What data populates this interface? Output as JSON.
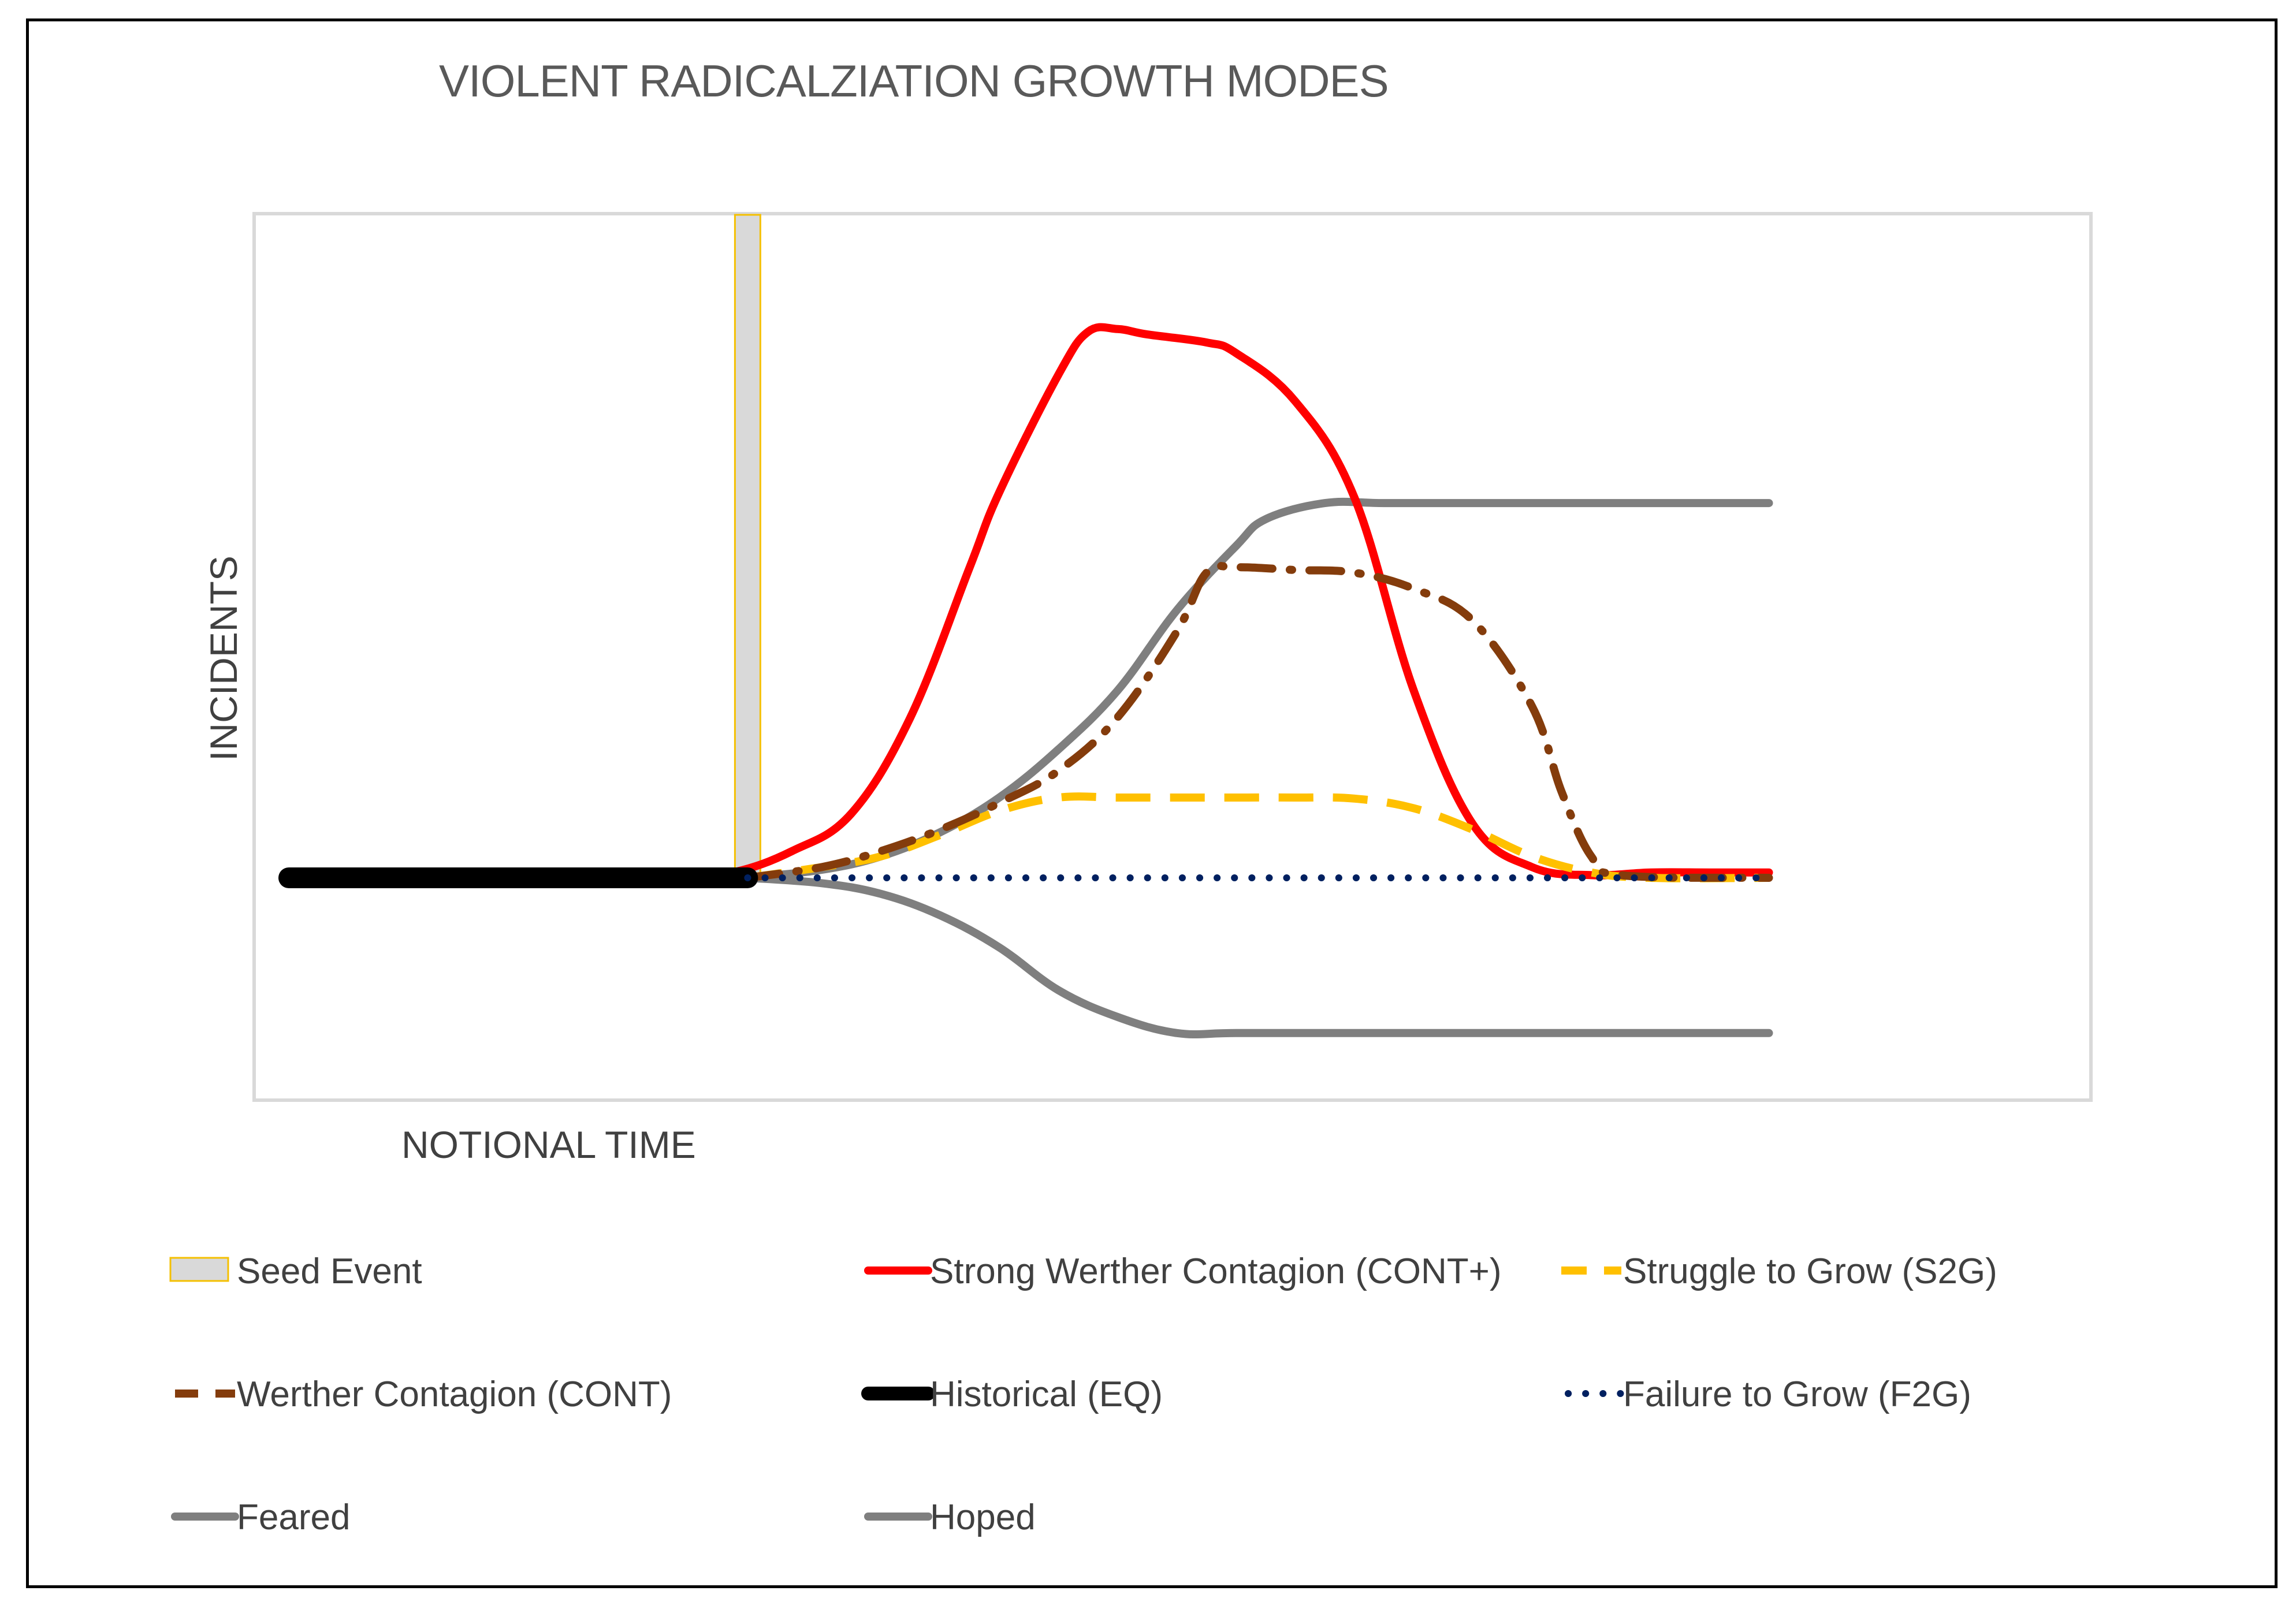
{
  "chart_data": {
    "type": "line",
    "title": "VIOLENT RADICALZIATION GROWTH MODES",
    "xlabel": "NOTIONAL TIME",
    "ylabel": "INCIDENTS",
    "x_axis_ticks": "none",
    "y_axis_ticks": "none",
    "xlim": [
      0,
      60
    ],
    "ylim": [
      -40,
      120
    ],
    "grid": false,
    "legend_position": "bottom",
    "seed_event": {
      "name": "Seed Event",
      "x": 15.5,
      "color": "#d9d9d9",
      "border": "#f5c000"
    },
    "series": [
      {
        "name": "Strong Werther Contagion (CONT+)",
        "key": "cont_plus",
        "color": "#ff0000",
        "style": "solid",
        "points": [
          [
            13,
            0
          ],
          [
            15,
            1
          ],
          [
            17,
            5
          ],
          [
            19,
            12
          ],
          [
            21,
            30
          ],
          [
            23,
            58
          ],
          [
            24,
            72
          ],
          [
            26,
            94
          ],
          [
            27,
            102
          ],
          [
            28,
            102.5
          ],
          [
            29,
            101.5
          ],
          [
            31,
            100
          ],
          [
            32,
            98
          ],
          [
            34,
            89
          ],
          [
            36,
            71
          ],
          [
            38,
            35
          ],
          [
            40,
            10
          ],
          [
            42,
            2
          ],
          [
            44,
            0.5
          ],
          [
            46,
            1
          ],
          [
            48,
            1
          ],
          [
            50,
            1
          ]
        ]
      },
      {
        "name": "Struggle to Grow (S2G)",
        "key": "s2g",
        "color": "#ffc000",
        "style": "dashed",
        "points": [
          [
            15.5,
            0
          ],
          [
            18,
            2
          ],
          [
            20,
            4
          ],
          [
            22,
            8
          ],
          [
            24,
            12.5
          ],
          [
            26,
            15
          ],
          [
            28,
            15
          ],
          [
            30,
            15
          ],
          [
            32,
            15
          ],
          [
            34,
            15
          ],
          [
            36,
            14.8
          ],
          [
            38,
            13
          ],
          [
            40,
            9
          ],
          [
            42,
            4
          ],
          [
            44,
            1
          ],
          [
            46,
            0
          ],
          [
            50,
            0
          ]
        ]
      },
      {
        "name": "Werther Contagion (CONT)",
        "key": "cont",
        "color": "#843c0c",
        "style": "dashdot",
        "points": [
          [
            15.5,
            0
          ],
          [
            18,
            2
          ],
          [
            20,
            5
          ],
          [
            22,
            9
          ],
          [
            24,
            14
          ],
          [
            26,
            20
          ],
          [
            28,
            30
          ],
          [
            30,
            46
          ],
          [
            31,
            57
          ],
          [
            32,
            58
          ],
          [
            34,
            57.5
          ],
          [
            36,
            57
          ],
          [
            38,
            54
          ],
          [
            40,
            48
          ],
          [
            42,
            32
          ],
          [
            43,
            16
          ],
          [
            44,
            4
          ],
          [
            45,
            0.5
          ],
          [
            50,
            0
          ]
        ]
      },
      {
        "name": "Historical (EQ)",
        "key": "eq",
        "color": "#000000",
        "style": "thick",
        "points": [
          [
            0,
            0
          ],
          [
            15.5,
            0
          ]
        ]
      },
      {
        "name": "Failure to Grow (F2G)",
        "key": "f2g",
        "color": "#002060",
        "style": "dotted",
        "points": [
          [
            15.5,
            0
          ],
          [
            50,
            0
          ]
        ]
      },
      {
        "name": "Feared",
        "key": "feared",
        "color": "#7f7f7f",
        "style": "solid",
        "points": [
          [
            15.5,
            0
          ],
          [
            18,
            1.5
          ],
          [
            20,
            4
          ],
          [
            22,
            8.5
          ],
          [
            24,
            15
          ],
          [
            26,
            24
          ],
          [
            28,
            35
          ],
          [
            30,
            50
          ],
          [
            32,
            62
          ],
          [
            33,
            67
          ],
          [
            35,
            70
          ],
          [
            37,
            70
          ],
          [
            40,
            70
          ],
          [
            45,
            70
          ],
          [
            50,
            70
          ]
        ]
      },
      {
        "name": "Hoped",
        "key": "hoped",
        "color": "#7f7f7f",
        "style": "solid",
        "points": [
          [
            15.5,
            0
          ],
          [
            18,
            -1
          ],
          [
            20,
            -3
          ],
          [
            22,
            -7
          ],
          [
            24,
            -13
          ],
          [
            26,
            -21
          ],
          [
            28,
            -26
          ],
          [
            30,
            -29
          ],
          [
            32,
            -29
          ],
          [
            36,
            -29
          ],
          [
            40,
            -29
          ],
          [
            45,
            -29
          ],
          [
            50,
            -29
          ]
        ]
      }
    ]
  },
  "legend": [
    {
      "label": "Seed Event",
      "key": "seed"
    },
    {
      "label": "Strong Werther Contagion (CONT+)",
      "key": "cont_plus"
    },
    {
      "label": "Struggle to Grow (S2G)",
      "key": "s2g"
    },
    {
      "label": "Werther Contagion (CONT)",
      "key": "cont"
    },
    {
      "label": "Historical (EQ)",
      "key": "eq"
    },
    {
      "label": "Failure to Grow (F2G)",
      "key": "f2g"
    },
    {
      "label": "Feared",
      "key": "feared"
    },
    {
      "label": "Hoped",
      "key": "hoped"
    }
  ]
}
